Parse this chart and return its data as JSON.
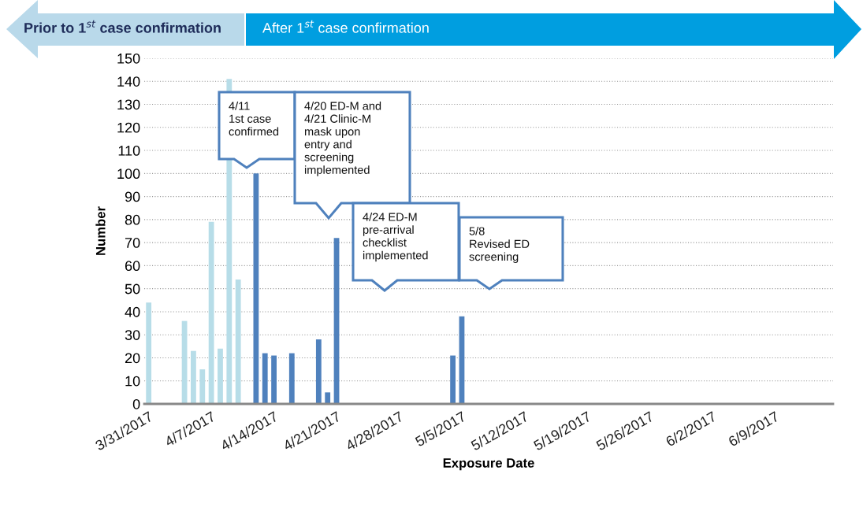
{
  "chart_data": {
    "type": "bar",
    "xlabel": "Exposure Date",
    "ylabel": "Number",
    "series": [
      {
        "color": "#b7dde8",
        "x": [
          "2017-03-31",
          "2017-04-04",
          "2017-04-05",
          "2017-04-06",
          "2017-04-07",
          "2017-04-08",
          "2017-04-09",
          "2017-04-10"
        ],
        "values": [
          44,
          36,
          23,
          15,
          79,
          24,
          141,
          54
        ]
      },
      {
        "color": "#4f81bd",
        "x": [
          "2017-04-12",
          "2017-04-13",
          "2017-04-14",
          "2017-04-16",
          "2017-04-19",
          "2017-04-20",
          "2017-04-21",
          "2017-05-04",
          "2017-05-05"
        ],
        "values": [
          100,
          22,
          21,
          22,
          28,
          5,
          72,
          21,
          38
        ]
      }
    ],
    "xlim": [
      "2017-03-30T12:00",
      "2017-06-15T12:00"
    ],
    "xticks": [
      {
        "value": "2017-03-31",
        "label": "3/31/2017"
      },
      {
        "value": "2017-04-07",
        "label": "4/7/2017"
      },
      {
        "value": "2017-04-14",
        "label": "4/14/2017"
      },
      {
        "value": "2017-04-21",
        "label": "4/21/2017"
      },
      {
        "value": "2017-04-28",
        "label": "4/28/2017"
      },
      {
        "value": "2017-05-05",
        "label": "5/5/2017"
      },
      {
        "value": "2017-05-12",
        "label": "5/12/2017"
      },
      {
        "value": "2017-05-19",
        "label": "5/19/2017"
      },
      {
        "value": "2017-05-26",
        "label": "5/26/2017"
      },
      {
        "value": "2017-06-02",
        "label": "6/2/2017"
      },
      {
        "value": "2017-06-09",
        "label": "6/9/2017"
      }
    ],
    "ylim": [
      0,
      150
    ],
    "yticks": [
      0,
      10,
      20,
      30,
      40,
      50,
      60,
      70,
      80,
      90,
      100,
      110,
      120,
      130,
      140,
      150
    ],
    "grid": "y",
    "legend": false,
    "annotations": [
      "Prior to 1$^{st}$ case confirmation",
      "After 1$^{st}$ case confirmation",
      "4/11\n1st case\nconfirmed",
      "4/20 ED-M and\n4/21 Clinic-M\nmask upon\nentry and\nscreening\nimplemented",
      "4/24 ED-M\npre-arrival\nchecklist\nimplemented",
      "5/8\nRevised ED\nscreening"
    ]
  }
}
